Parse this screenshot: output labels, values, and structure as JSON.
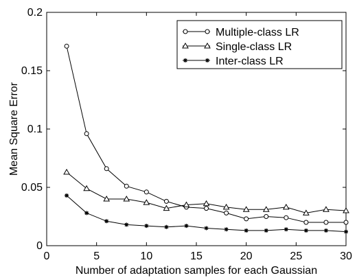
{
  "chart_data": {
    "type": "line",
    "xlabel": "Number of adaptation samples for each Gaussian",
    "ylabel": "Mean Square Error",
    "xlim": [
      0,
      30
    ],
    "ylim": [
      0,
      0.2
    ],
    "xticks": [
      0,
      5,
      10,
      15,
      20,
      25,
      30
    ],
    "xtick_labels": [
      "0",
      "5",
      "10",
      "15",
      "20",
      "25",
      "30"
    ],
    "yticks": [
      0,
      0.05,
      0.1,
      0.15,
      0.2
    ],
    "ytick_labels": [
      "0",
      "0.05",
      "0.1",
      "0.15",
      "0.2"
    ],
    "grid": false,
    "legend_position": "top-right",
    "x": [
      2,
      4,
      6,
      8,
      10,
      12,
      14,
      16,
      18,
      20,
      22,
      24,
      26,
      28,
      30
    ],
    "series": [
      {
        "name": "Multiple-class LR",
        "marker": "circle",
        "color": "#000000",
        "values": [
          0.171,
          0.096,
          0.066,
          0.051,
          0.046,
          0.038,
          0.033,
          0.032,
          0.028,
          0.023,
          0.025,
          0.024,
          0.02,
          0.02,
          0.02
        ]
      },
      {
        "name": "Single-class LR",
        "marker": "triangle",
        "color": "#000000",
        "values": [
          0.063,
          0.049,
          0.04,
          0.04,
          0.037,
          0.032,
          0.035,
          0.036,
          0.033,
          0.031,
          0.031,
          0.033,
          0.028,
          0.031,
          0.03
        ]
      },
      {
        "name": "Inter-class LR",
        "marker": "star",
        "color": "#000000",
        "values": [
          0.043,
          0.028,
          0.021,
          0.018,
          0.017,
          0.016,
          0.017,
          0.015,
          0.014,
          0.013,
          0.013,
          0.014,
          0.013,
          0.013,
          0.012
        ]
      }
    ]
  }
}
